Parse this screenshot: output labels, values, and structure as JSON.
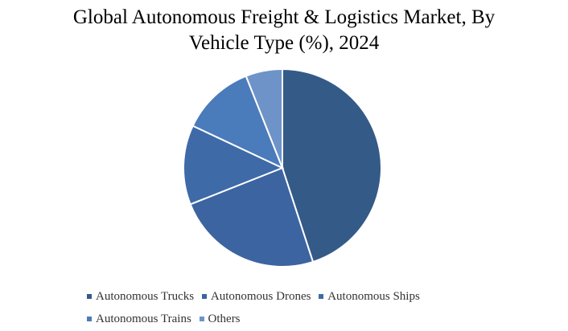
{
  "title_line1": "Global Autonomous Freight & Logistics Market, By",
  "title_line2": "Vehicle Type (%), 2024",
  "chart_data": {
    "type": "pie",
    "title": "Global Autonomous Freight & Logistics Market, By Vehicle Type (%), 2024",
    "legend_position": "bottom",
    "categories": [
      "Autonomous Trucks",
      "Autonomous Drones",
      "Autonomous Ships",
      "Autonomous Trains",
      "Others"
    ],
    "values": [
      45,
      24,
      13,
      12,
      6
    ],
    "colors": [
      "#345a87",
      "#3c64a0",
      "#3e6aa8",
      "#4a7bbb",
      "#6e93c8"
    ]
  }
}
